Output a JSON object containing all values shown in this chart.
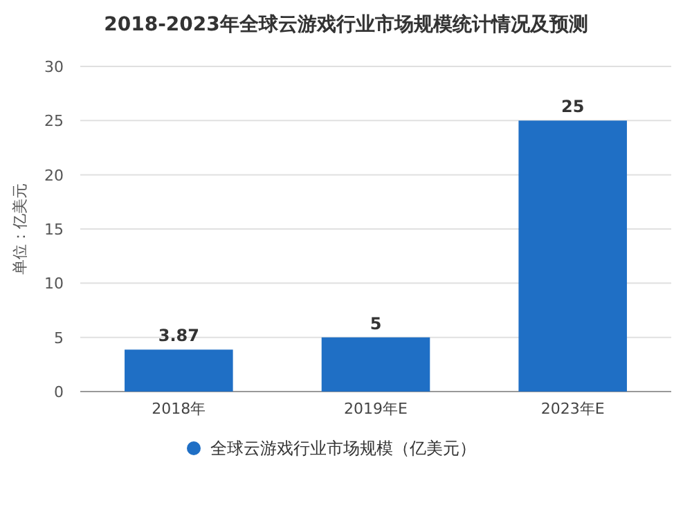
{
  "chart_data": {
    "type": "bar",
    "title": "2018-2023年全球云游戏行业市场规模统计情况及预测",
    "ylabel": "单位：亿美元",
    "categories": [
      "2018年",
      "2019年E",
      "2023年E"
    ],
    "series": [
      {
        "name": "全球云游戏行业市场规模（亿美元）",
        "color": "#1f6fc5",
        "values": [
          3.87,
          5,
          25
        ]
      }
    ],
    "ylim": [
      0,
      30
    ],
    "yticks": [
      0,
      5,
      10,
      15,
      20,
      25,
      30
    ],
    "grid": "y",
    "legend": "bottom",
    "data_labels": true
  }
}
